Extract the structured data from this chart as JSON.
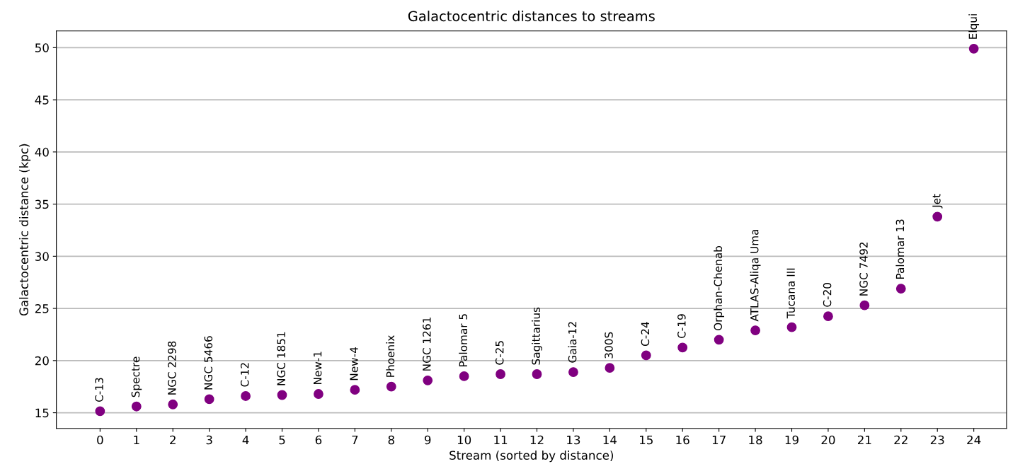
{
  "chart_data": {
    "type": "scatter",
    "title": "Galactocentric distances to streams",
    "xlabel": "Stream (sorted by distance)",
    "ylabel": "Galactocentric distance (kpc)",
    "x": [
      0,
      1,
      2,
      3,
      4,
      5,
      6,
      7,
      8,
      9,
      10,
      11,
      12,
      13,
      14,
      15,
      16,
      17,
      18,
      19,
      20,
      21,
      22,
      23,
      24
    ],
    "series": [
      {
        "color": "#800080",
        "values": [
          15.15,
          15.6,
          15.8,
          16.3,
          16.6,
          16.7,
          16.8,
          17.2,
          17.5,
          18.1,
          18.5,
          18.7,
          18.7,
          18.9,
          19.3,
          20.5,
          21.25,
          22.0,
          22.9,
          23.2,
          24.25,
          25.3,
          26.9,
          33.8,
          49.9
        ]
      }
    ],
    "annotations": [
      {
        "text": "C-13",
        "x": 0,
        "y": 15.15
      },
      {
        "text": "Spectre",
        "x": 1,
        "y": 15.6
      },
      {
        "text": "NGC 2298",
        "x": 2,
        "y": 15.8
      },
      {
        "text": "NGC 5466",
        "x": 3,
        "y": 16.3
      },
      {
        "text": "C-12",
        "x": 4,
        "y": 16.6
      },
      {
        "text": "NGC 1851",
        "x": 5,
        "y": 16.7
      },
      {
        "text": "New-1",
        "x": 6,
        "y": 16.8
      },
      {
        "text": "New-4",
        "x": 7,
        "y": 17.2
      },
      {
        "text": "Phoenix",
        "x": 8,
        "y": 17.5
      },
      {
        "text": "NGC 1261",
        "x": 9,
        "y": 18.1
      },
      {
        "text": "Palomar 5",
        "x": 10,
        "y": 18.5
      },
      {
        "text": "C-25",
        "x": 11,
        "y": 18.7
      },
      {
        "text": "Sagittarius",
        "x": 12,
        "y": 18.7
      },
      {
        "text": "Gaia-12",
        "x": 13,
        "y": 18.9
      },
      {
        "text": "300S",
        "x": 14,
        "y": 19.3
      },
      {
        "text": "C-24",
        "x": 15,
        "y": 20.5
      },
      {
        "text": "C-19",
        "x": 16,
        "y": 21.25
      },
      {
        "text": "Orphan-Chenab",
        "x": 17,
        "y": 22.0
      },
      {
        "text": "ATLAS-Aliqa Uma",
        "x": 18,
        "y": 22.9
      },
      {
        "text": "Tucana III",
        "x": 19,
        "y": 23.2
      },
      {
        "text": "C-20",
        "x": 20,
        "y": 24.25
      },
      {
        "text": "NGC 7492",
        "x": 21,
        "y": 25.3
      },
      {
        "text": "Palomar 13",
        "x": 22,
        "y": 26.9
      },
      {
        "text": "Jet",
        "x": 23,
        "y": 33.8
      },
      {
        "text": "Elqui",
        "x": 24,
        "y": 49.9
      }
    ],
    "xlim": [
      -1.2,
      24.9
    ],
    "ylim": [
      13.5,
      51.6
    ],
    "xticks": [
      0,
      1,
      2,
      3,
      4,
      5,
      6,
      7,
      8,
      9,
      10,
      11,
      12,
      13,
      14,
      15,
      16,
      17,
      18,
      19,
      20,
      21,
      22,
      23,
      24
    ],
    "yticks": [
      15,
      20,
      25,
      30,
      35,
      40,
      45,
      50
    ],
    "grid": "y",
    "marker": "circle",
    "legend": false
  }
}
